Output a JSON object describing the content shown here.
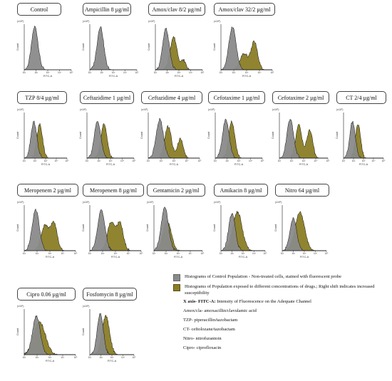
{
  "chart_data": [
    {
      "type": "area",
      "title": "Control",
      "y_multiplier": "(x10¹)",
      "ylabel": "Count",
      "xlabel": "FITC-A",
      "x_log_range": [
        1,
        5
      ],
      "series": [
        {
          "name": "Control",
          "peaks": [
            {
              "center": 1.9,
              "width": 0.28,
              "height": 0.95
            }
          ]
        }
      ]
    },
    {
      "type": "area",
      "title": "Ampicillin 8 µg/ml",
      "y_multiplier": "(x10¹)",
      "ylabel": "Count",
      "xlabel": "FITC-A",
      "x_log_range": [
        1,
        5
      ],
      "series": [
        {
          "name": "Control",
          "peaks": [
            {
              "center": 1.9,
              "width": 0.28,
              "height": 0.95
            }
          ]
        }
      ]
    },
    {
      "type": "area",
      "title": "Amox/clav 8/2 µg/ml",
      "y_multiplier": "(x10¹)",
      "ylabel": "Count",
      "xlabel": "FITC-A",
      "x_log_range": [
        1,
        5
      ],
      "series": [
        {
          "name": "Control",
          "peaks": [
            {
              "center": 1.9,
              "width": 0.28,
              "height": 0.9
            }
          ]
        },
        {
          "name": "Exposed",
          "peaks": [
            {
              "center": 2.55,
              "width": 0.3,
              "height": 0.72
            },
            {
              "center": 3.4,
              "width": 0.2,
              "height": 0.2
            }
          ]
        }
      ]
    },
    {
      "type": "area",
      "title": "Amox/clav 32/2 µg/ml",
      "y_multiplier": "(x10¹)",
      "ylabel": "Count",
      "xlabel": "FITC-A",
      "x_log_range": [
        1,
        5
      ],
      "series": [
        {
          "name": "Control",
          "peaks": [
            {
              "center": 1.9,
              "width": 0.28,
              "height": 0.95
            }
          ]
        },
        {
          "name": "Exposed",
          "peaks": [
            {
              "center": 2.8,
              "width": 0.3,
              "height": 0.35
            },
            {
              "center": 3.6,
              "width": 0.25,
              "height": 0.62
            }
          ]
        }
      ]
    },
    {
      "type": "area",
      "title": "TZP 8/4 µg/ml",
      "y_multiplier": "(x10¹)",
      "ylabel": "Count",
      "xlabel": "FITC-A",
      "x_log_range": [
        1,
        5
      ],
      "series": [
        {
          "name": "Control",
          "peaks": [
            {
              "center": 1.9,
              "width": 0.28,
              "height": 0.8
            }
          ]
        },
        {
          "name": "Exposed",
          "peaks": [
            {
              "center": 2.45,
              "width": 0.26,
              "height": 0.75
            }
          ]
        }
      ]
    },
    {
      "type": "area",
      "title": "Ceftazidime 1 µg/ml",
      "y_multiplier": "(x10¹)",
      "ylabel": "Count",
      "xlabel": "FITC-A",
      "x_log_range": [
        1,
        5
      ],
      "series": [
        {
          "name": "Control",
          "peaks": [
            {
              "center": 1.9,
              "width": 0.28,
              "height": 0.8
            }
          ]
        },
        {
          "name": "Exposed",
          "peaks": [
            {
              "center": 2.45,
              "width": 0.26,
              "height": 0.75
            }
          ]
        }
      ]
    },
    {
      "type": "area",
      "title": "Ceftazidime 4 µg/ml",
      "y_multiplier": "(x10²)",
      "ylabel": "Count",
      "xlabel": "FITC-A",
      "x_log_range": [
        1,
        5
      ],
      "series": [
        {
          "name": "Control",
          "peaks": [
            {
              "center": 1.9,
              "width": 0.28,
              "height": 0.85
            }
          ]
        },
        {
          "name": "Exposed",
          "peaks": [
            {
              "center": 2.55,
              "width": 0.26,
              "height": 0.7
            },
            {
              "center": 3.5,
              "width": 0.22,
              "height": 0.42
            }
          ]
        }
      ]
    },
    {
      "type": "area",
      "title": "Cefotaxime 1 µg/ml",
      "y_multiplier": "(x10²)",
      "ylabel": "Count",
      "xlabel": "FITC-A",
      "x_log_range": [
        1,
        5
      ],
      "series": [
        {
          "name": "Control",
          "peaks": [
            {
              "center": 1.9,
              "width": 0.28,
              "height": 0.85
            }
          ]
        },
        {
          "name": "Exposed",
          "peaks": [
            {
              "center": 2.4,
              "width": 0.26,
              "height": 0.8
            }
          ]
        }
      ]
    },
    {
      "type": "area",
      "title": "Cefotaxime 2 µg/ml",
      "y_multiplier": "(x10¹)",
      "ylabel": "Count",
      "xlabel": "FITC-A",
      "x_log_range": [
        1,
        5
      ],
      "series": [
        {
          "name": "Control",
          "peaks": [
            {
              "center": 1.9,
              "width": 0.28,
              "height": 0.85
            }
          ]
        },
        {
          "name": "Exposed",
          "peaks": [
            {
              "center": 2.6,
              "width": 0.26,
              "height": 0.72
            },
            {
              "center": 3.5,
              "width": 0.24,
              "height": 0.62
            }
          ]
        }
      ]
    },
    {
      "type": "area",
      "title": "CT 2/4 µg/ml",
      "y_multiplier": "(x10¹)",
      "ylabel": "Count",
      "xlabel": "FITC-A",
      "x_log_range": [
        1,
        5
      ],
      "series": [
        {
          "name": "Control",
          "peaks": [
            {
              "center": 1.9,
              "width": 0.28,
              "height": 0.8
            }
          ]
        },
        {
          "name": "Exposed",
          "peaks": [
            {
              "center": 2.45,
              "width": 0.26,
              "height": 0.75
            }
          ]
        }
      ]
    },
    {
      "type": "area",
      "title": "Meropenem 2 µg/ml",
      "y_multiplier": "(x10¹)",
      "ylabel": "Count",
      "xlabel": "FITC-A",
      "x_log_range": [
        1,
        5
      ],
      "series": [
        {
          "name": "Control",
          "peaks": [
            {
              "center": 1.9,
              "width": 0.28,
              "height": 0.9
            }
          ]
        },
        {
          "name": "Exposed",
          "peaks": [
            {
              "center": 2.6,
              "width": 0.28,
              "height": 0.55
            },
            {
              "center": 3.3,
              "width": 0.26,
              "height": 0.62
            }
          ]
        }
      ]
    },
    {
      "type": "area",
      "title": "Meropenem 8 µg/ml",
      "y_multiplier": "(x10¹)",
      "ylabel": "Count",
      "xlabel": "FITC-A",
      "x_log_range": [
        1,
        5
      ],
      "series": [
        {
          "name": "Control",
          "peaks": [
            {
              "center": 1.9,
              "width": 0.28,
              "height": 0.9
            }
          ]
        },
        {
          "name": "Exposed",
          "peaks": [
            {
              "center": 2.65,
              "width": 0.28,
              "height": 0.62
            },
            {
              "center": 3.35,
              "width": 0.26,
              "height": 0.6
            }
          ]
        }
      ]
    },
    {
      "type": "area",
      "title": "Gentamicin 2 µg/ml",
      "y_multiplier": "(x10¹)",
      "ylabel": "Count",
      "xlabel": "FITC-A",
      "x_log_range": [
        1,
        5
      ],
      "series": [
        {
          "name": "Control",
          "peaks": [
            {
              "center": 1.9,
              "width": 0.3,
              "height": 0.95
            }
          ]
        },
        {
          "name": "Exposed",
          "peaks": [
            {
              "center": 2.1,
              "width": 0.34,
              "height": 0.65
            }
          ]
        }
      ]
    },
    {
      "type": "area",
      "title": "Amikacin 8 µg/ml",
      "y_multiplier": "(x10¹)",
      "ylabel": "Count",
      "xlabel": "FITC-A",
      "x_log_range": [
        1,
        5
      ],
      "series": [
        {
          "name": "Control",
          "peaks": [
            {
              "center": 2.0,
              "width": 0.3,
              "height": 0.82
            }
          ]
        },
        {
          "name": "Exposed",
          "peaks": [
            {
              "center": 2.5,
              "width": 0.42,
              "height": 0.85
            }
          ]
        }
      ]
    },
    {
      "type": "area",
      "title": "Nitro 64 µg/ml",
      "y_multiplier": "(x10¹)",
      "ylabel": "Count",
      "xlabel": "FITC-A",
      "x_log_range": [
        1,
        5
      ],
      "series": [
        {
          "name": "Control",
          "peaks": [
            {
              "center": 2.0,
              "width": 0.3,
              "height": 0.72
            }
          ]
        },
        {
          "name": "Exposed",
          "peaks": [
            {
              "center": 2.6,
              "width": 0.42,
              "height": 0.85
            }
          ]
        }
      ]
    },
    {
      "type": "area",
      "title": "Cipro 0.06 µg/ml",
      "y_multiplier": "(x10¹)",
      "ylabel": "Count",
      "xlabel": "FITC-A",
      "x_log_range": [
        1,
        5
      ],
      "series": [
        {
          "name": "Control",
          "peaks": [
            {
              "center": 1.95,
              "width": 0.3,
              "height": 0.85
            }
          ]
        },
        {
          "name": "Exposed",
          "peaks": [
            {
              "center": 2.2,
              "width": 0.45,
              "height": 0.72
            }
          ]
        }
      ]
    },
    {
      "type": "area",
      "title": "Fosfomycin 8 µg/ml",
      "y_multiplier": "(x10¹)",
      "ylabel": "Count",
      "xlabel": "FITC-A",
      "x_log_range": [
        1,
        5
      ],
      "series": [
        {
          "name": "Control",
          "peaks": [
            {
              "center": 1.95,
              "width": 0.28,
              "height": 0.9
            }
          ]
        },
        {
          "name": "Exposed",
          "peaks": [
            {
              "center": 2.45,
              "width": 0.34,
              "height": 0.85
            }
          ]
        }
      ]
    }
  ],
  "colors": {
    "control": "#8a8a8a",
    "exposed": "#8b7d25",
    "outline": "#111111"
  },
  "legend": {
    "control_text": "Histograms of Control Population - Non-treated cells, stained with fluorescent probe",
    "exposed_text": "Histograms of Population exposed to different concentrations of drugs.; Right shift indicates increased susceptibility",
    "xaxis_label": "X axis- FITC-A:",
    "xaxis_text": " Intensity of Fluorescence on the Adequate Channel",
    "abbreviations": [
      "Amox/cla- amoxacillin/clavulamic acid",
      "TZP- piperacillin/tazobactam",
      "CT- ceftolozane/tazobactam",
      "Nitro- nitrofurantoin",
      "Cipro- ciprofloxacin"
    ]
  }
}
